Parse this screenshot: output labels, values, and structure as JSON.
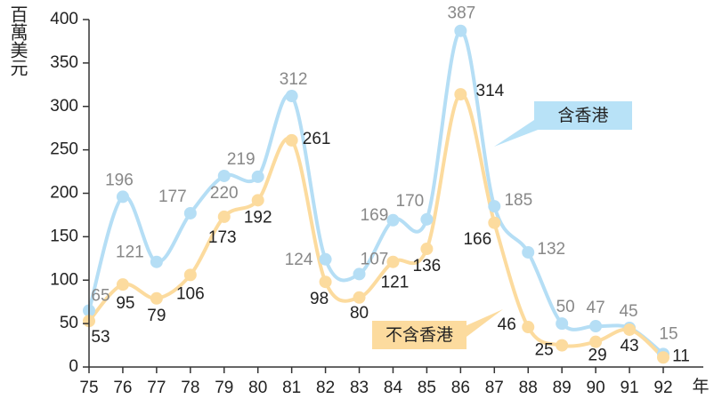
{
  "chart_data": {
    "type": "line",
    "y_label": "百萬美元",
    "x_label": "年",
    "categories": [
      "75",
      "76",
      "77",
      "78",
      "79",
      "80",
      "81",
      "82",
      "83",
      "84",
      "85",
      "86",
      "87",
      "88",
      "89",
      "90",
      "91",
      "92"
    ],
    "series": [
      {
        "name": "含香港",
        "color": "#b5def5",
        "label_color": "#888888",
        "values": [
          65,
          196,
          121,
          177,
          220,
          219,
          312,
          124,
          107,
          169,
          170,
          387,
          185,
          132,
          50,
          47,
          45,
          15
        ]
      },
      {
        "name": "不含香港",
        "color": "#fcdb9e",
        "label_color": "#222222",
        "values": [
          53,
          95,
          79,
          106,
          173,
          192,
          261,
          98,
          80,
          121,
          136,
          314,
          166,
          46,
          25,
          29,
          43,
          11
        ]
      }
    ],
    "ylim": [
      0,
      400
    ],
    "yticks": [
      0,
      50,
      100,
      150,
      200,
      250,
      300,
      350,
      400
    ],
    "grid": false
  }
}
